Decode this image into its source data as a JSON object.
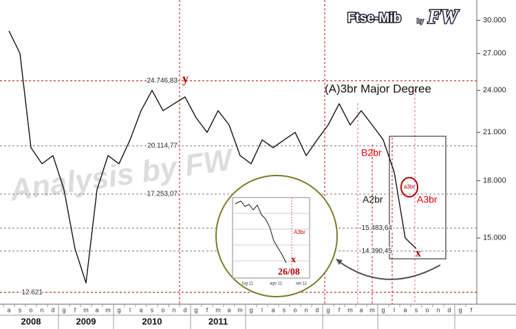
{
  "chart_data": {
    "type": "line",
    "logo": {
      "name": "Ftse-Mib",
      "by": "by",
      "author": "FW"
    },
    "watermark": "Analysis by FW",
    "categories": [
      "a",
      "s",
      "o",
      "n",
      "d",
      "g",
      "f",
      "m",
      "a",
      "m",
      "g",
      "l",
      "a",
      "s",
      "o",
      "n",
      "d",
      "g",
      "f",
      "m",
      "a",
      "m",
      "g",
      "l",
      "a",
      "s",
      "o",
      "n",
      "d",
      "g",
      "f",
      "m",
      "a",
      "m",
      "g",
      "l",
      "a",
      "s",
      "o",
      "n",
      "d",
      "g",
      "f"
    ],
    "years": [
      "2008",
      "2009",
      "2010",
      "2011"
    ],
    "series": [
      {
        "name": "Ftse-Mib",
        "color": "#111111",
        "values": [
          29000,
          27000,
          20000,
          19000,
          19500,
          17500,
          14500,
          13000,
          17500,
          19500,
          19000,
          20500,
          22500,
          24000,
          22500,
          23000,
          23500,
          22000,
          21000,
          22500,
          21500,
          19500,
          19000,
          20500,
          20000,
          20500,
          21000,
          19500,
          20500,
          21500,
          23000,
          21500,
          22500,
          21500,
          20500,
          18500,
          15000,
          14500,
          null,
          null,
          null,
          null,
          null
        ]
      }
    ],
    "ylim": [
      12150,
      32000
    ],
    "log_scale": true,
    "yticks": [
      {
        "value": 15000,
        "label": "15.000"
      },
      {
        "value": 18000,
        "label": "18.000"
      },
      {
        "value": 21000,
        "label": "21.000"
      },
      {
        "value": 24000,
        "label": "24.000"
      },
      {
        "value": 27000,
        "label": "27.000"
      },
      {
        "value": 30000,
        "label": "30.000"
      }
    ],
    "levels": [
      {
        "value": 24746.83,
        "label": "24.746,83"
      },
      {
        "value": 20114.77,
        "label": "20.114,77"
      },
      {
        "value": 17253.07,
        "label": "17.253,07"
      },
      {
        "value": 15483.64,
        "label": "15.483,64"
      },
      {
        "value": 14390.45,
        "label": "14.390,45"
      },
      {
        "value": 12621,
        "label": "12.621"
      }
    ],
    "annotations": {
      "y": "y",
      "x": "x",
      "degree": "(A)3br Major Degree",
      "b2br": "B2br",
      "a2br": "A2br",
      "a3br": "A3br",
      "a3br_small": "a3br"
    },
    "inset": {
      "wave": "A3br",
      "x": "x",
      "date": "26/08",
      "months": [
        "lug 11",
        "ago 11",
        "set 11"
      ]
    }
  }
}
